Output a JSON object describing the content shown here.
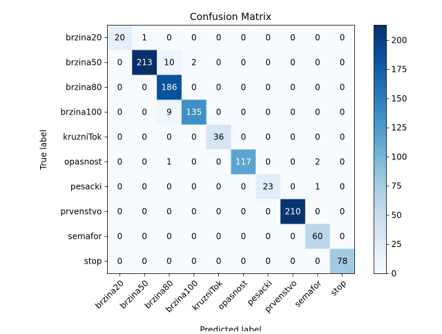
{
  "chart_data": {
    "type": "heatmap",
    "title": "Confusion Matrix",
    "xlabel": "Predicted label",
    "ylabel": "True label",
    "x_categories": [
      "brzina20",
      "brzina50",
      "brzina80",
      "brzina100",
      "kruzniTok",
      "opasnost",
      "pesacki",
      "prvenstvo",
      "semafor",
      "stop"
    ],
    "y_categories": [
      "brzina20",
      "brzina50",
      "brzina80",
      "brzina100",
      "kruzniTok",
      "opasnost",
      "pesacki",
      "prvenstvo",
      "semafor",
      "stop"
    ],
    "values": [
      [
        20,
        1,
        0,
        0,
        0,
        0,
        0,
        0,
        0,
        0
      ],
      [
        0,
        213,
        10,
        2,
        0,
        0,
        0,
        0,
        0,
        0
      ],
      [
        0,
        0,
        186,
        0,
        0,
        0,
        0,
        0,
        0,
        0
      ],
      [
        0,
        0,
        9,
        135,
        0,
        0,
        0,
        0,
        0,
        0
      ],
      [
        0,
        0,
        0,
        0,
        36,
        0,
        0,
        0,
        0,
        0
      ],
      [
        0,
        0,
        1,
        0,
        0,
        117,
        0,
        0,
        2,
        0
      ],
      [
        0,
        0,
        0,
        0,
        0,
        0,
        23,
        0,
        1,
        0
      ],
      [
        0,
        0,
        0,
        0,
        0,
        0,
        0,
        210,
        0,
        0
      ],
      [
        0,
        0,
        0,
        0,
        0,
        0,
        0,
        0,
        60,
        0
      ],
      [
        0,
        0,
        0,
        0,
        0,
        0,
        0,
        0,
        0,
        78
      ]
    ],
    "colormap": "Blues",
    "colorbar": {
      "range": [
        0,
        213
      ],
      "ticks": [
        0,
        25,
        50,
        75,
        100,
        125,
        150,
        175,
        200
      ]
    },
    "grid": false
  }
}
